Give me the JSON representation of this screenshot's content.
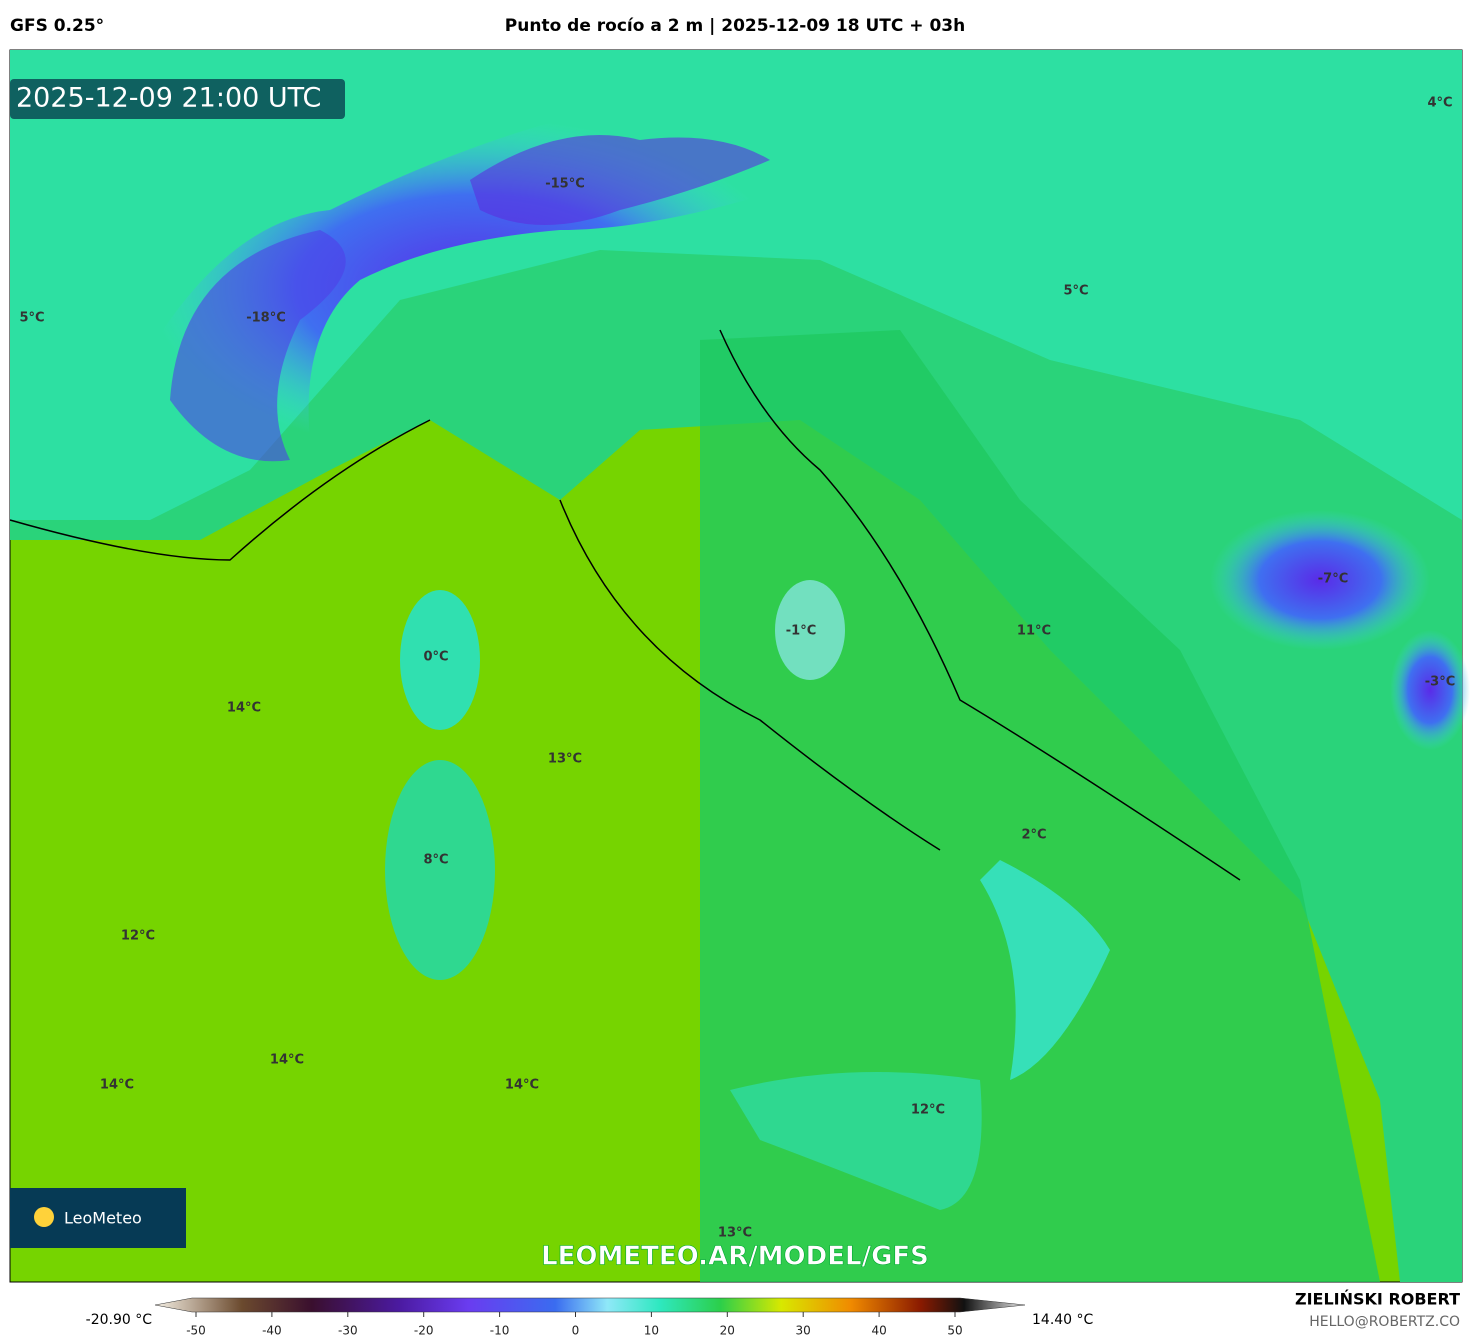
{
  "header": {
    "model": "GFS 0.25°",
    "title": "Punto de rocío a 2 m | 2025-12-09 18 UTC + 03h"
  },
  "map": {
    "timestamp": "2025-12-09 21:00 UTC",
    "labels": [
      "4°C",
      "-15°C",
      "5°C",
      "-18°C",
      "5°C",
      "-7°C",
      "-1°C",
      "11°C",
      "0°C",
      "14°C",
      "-3°C",
      "13°C",
      "2°C",
      "8°C",
      "12°C",
      "14°C",
      "14°C",
      "14°C",
      "12°C",
      "13°C"
    ],
    "watermark": "LEOMETEO.AR/MODEL/GFS",
    "logo": "LeoMeteo"
  },
  "colorbar": {
    "min_label": "-20.90 °C",
    "max_label": "14.40 °C",
    "ticks": [
      -50,
      -40,
      -30,
      -20,
      -10,
      0,
      10,
      20,
      30,
      40,
      50
    ]
  },
  "footer": {
    "author": "ZIELIŃSKI ROBERT",
    "email": "HELLO@ROBERTZ.CO"
  }
}
